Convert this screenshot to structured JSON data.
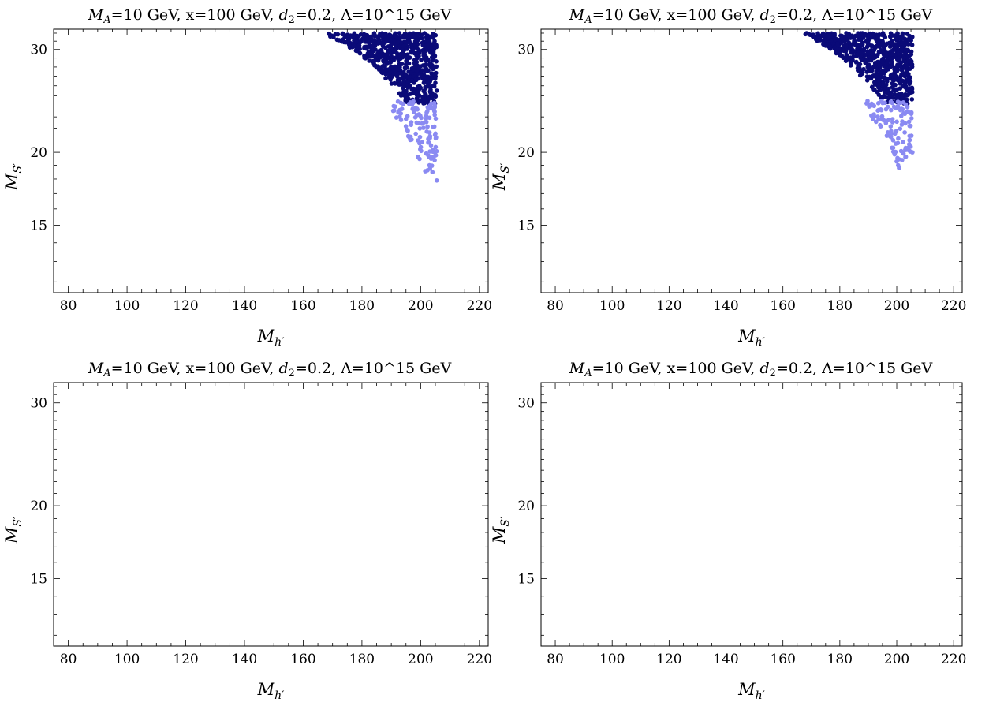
{
  "colors": {
    "dark": "#0a0a78",
    "light": "#8a8af2",
    "axis": "#000000"
  },
  "chart_data": [
    {
      "type": "scatter",
      "title": {
        "ma": "M",
        "ma_sub": "A",
        "ma_rest": "=10 GeV, x=100 GeV, ",
        "d": "d",
        "d_sub": "2",
        "rest": "=0.2, Λ=10^15 GeV"
      },
      "xlabel": {
        "main": "M",
        "sub": "h′"
      },
      "ylabel": {
        "main": "M",
        "sub": "S′"
      },
      "xlim": [
        75,
        223
      ],
      "ylim": [
        11.5,
        32.5
      ],
      "yscale": "log",
      "xticks": [
        80,
        100,
        120,
        140,
        160,
        180,
        200,
        220
      ],
      "yticks": [
        15,
        20,
        30
      ],
      "series": [
        {
          "color": "dark",
          "region": [
            [
              167,
              32
            ],
            [
              205.5,
              32
            ],
            [
              205.5,
              24.2
            ],
            [
              195,
              24.3
            ],
            [
              186,
              27.5
            ],
            [
              177,
              30
            ]
          ]
        },
        {
          "color": "light",
          "region": [
            [
              189,
              24.5
            ],
            [
              205.5,
              24.5
            ],
            [
              205.5,
              19.8
            ],
            [
              202,
              17.8
            ],
            [
              197,
              20.8
            ],
            [
              191,
              23
            ]
          ]
        }
      ]
    },
    {
      "type": "scatter",
      "title": {
        "ma": "M",
        "ma_sub": "A",
        "ma_rest": "=10 GeV, x=100 GeV, ",
        "d": "d",
        "d_sub": "2",
        "rest": "=0.2, Λ=10^15 GeV"
      },
      "xlabel": {
        "main": "M",
        "sub": "h′"
      },
      "ylabel": {
        "main": "M",
        "sub": "S′"
      },
      "xlim": [
        75,
        223
      ],
      "ylim": [
        11.5,
        32.5
      ],
      "yscale": "log",
      "xticks": [
        80,
        100,
        120,
        140,
        160,
        180,
        200,
        220
      ],
      "yticks": [
        15,
        20,
        30
      ],
      "series": [
        {
          "color": "dark",
          "region": [
            [
              167,
              32
            ],
            [
              205.5,
              32
            ],
            [
              205.5,
              24.2
            ],
            [
              195,
              24.3
            ],
            [
              186,
              27.5
            ],
            [
              177,
              30
            ]
          ]
        },
        {
          "color": "light",
          "region": [
            [
              189,
              24.5
            ],
            [
              205.5,
              24.5
            ],
            [
              205.5,
              20
            ],
            [
              201,
              18.7
            ],
            [
              197,
              21
            ],
            [
              191,
              23
            ]
          ]
        }
      ]
    },
    {
      "type": "scatter",
      "title": {
        "ma": "M",
        "ma_sub": "A",
        "ma_rest": "=10 GeV, x=100 GeV, ",
        "d": "d",
        "d_sub": "2",
        "rest": "=0.2, Λ=10^15 GeV"
      },
      "xlabel": {
        "main": "M",
        "sub": "h′"
      },
      "ylabel": {
        "main": "M",
        "sub": "S′"
      },
      "xlim": [
        75,
        223
      ],
      "ylim": [
        11.5,
        32.5
      ],
      "yscale": "log",
      "xticks": [
        80,
        100,
        120,
        140,
        160,
        180,
        200,
        220
      ],
      "yticks": [
        15,
        20,
        30
      ],
      "series": []
    },
    {
      "type": "scatter",
      "title": {
        "ma": "M",
        "ma_sub": "A",
        "ma_rest": "=10 GeV, x=100 GeV, ",
        "d": "d",
        "d_sub": "2",
        "rest": "=0.2, Λ=10^15 GeV"
      },
      "xlabel": {
        "main": "M",
        "sub": "h′"
      },
      "ylabel": {
        "main": "M",
        "sub": "S′"
      },
      "xlim": [
        75,
        223
      ],
      "ylim": [
        11.5,
        32.5
      ],
      "yscale": "log",
      "xticks": [
        80,
        100,
        120,
        140,
        160,
        180,
        200,
        220
      ],
      "yticks": [
        15,
        20,
        30
      ],
      "series": []
    }
  ]
}
